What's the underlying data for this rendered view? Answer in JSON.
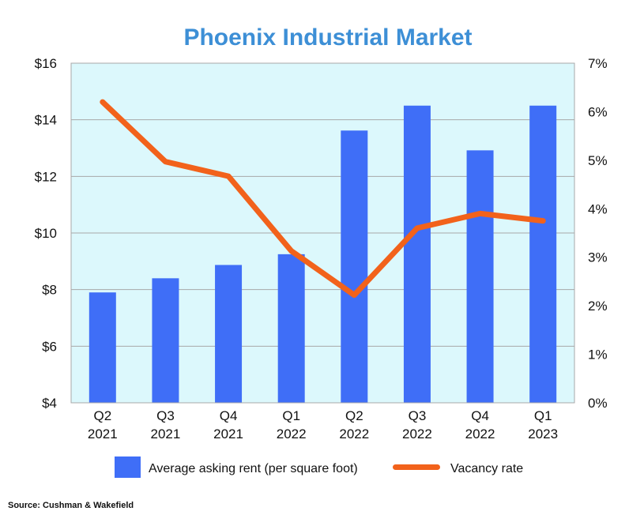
{
  "chart_data": {
    "type": "bar",
    "title": "Phoenix Industrial Market",
    "categories": [
      [
        "Q2",
        "2021"
      ],
      [
        "Q3",
        "2021"
      ],
      [
        "Q4",
        "2021"
      ],
      [
        "Q1",
        "2022"
      ],
      [
        "Q2",
        "2022"
      ],
      [
        "Q3",
        "2022"
      ],
      [
        "Q4",
        "2022"
      ],
      [
        "Q1",
        "2023"
      ]
    ],
    "series": [
      {
        "name": "Average asking rent (per square foot)",
        "type": "bar",
        "axis": "left",
        "color": "#3f6ef7",
        "values": [
          7.9,
          8.4,
          8.87,
          9.25,
          13.62,
          14.5,
          12.92,
          14.5
        ]
      },
      {
        "name": "Vacancy rate",
        "type": "line",
        "axis": "right",
        "color": "#f2621b",
        "values": [
          6.2,
          4.97,
          4.67,
          3.13,
          2.22,
          3.6,
          3.9,
          3.75
        ]
      }
    ],
    "y_left": {
      "range": [
        4,
        16
      ],
      "ticks": [
        4,
        6,
        8,
        10,
        12,
        14,
        16
      ],
      "tick_labels": [
        "$4",
        "$6",
        "$8",
        "$10",
        "$12",
        "$14",
        "$16"
      ]
    },
    "y_right": {
      "range": [
        0,
        7
      ],
      "ticks": [
        0,
        1,
        2,
        3,
        4,
        5,
        6,
        7
      ],
      "tick_labels": [
        "0%",
        "1%",
        "2%",
        "3%",
        "4%",
        "5%",
        "6%",
        "7%"
      ]
    },
    "grid": "horizontal",
    "plot_background": "#dcf8fc",
    "grid_color": "#a8a8a8",
    "legend_position": "bottom",
    "source": "Source: Cushman & Wakefield"
  }
}
